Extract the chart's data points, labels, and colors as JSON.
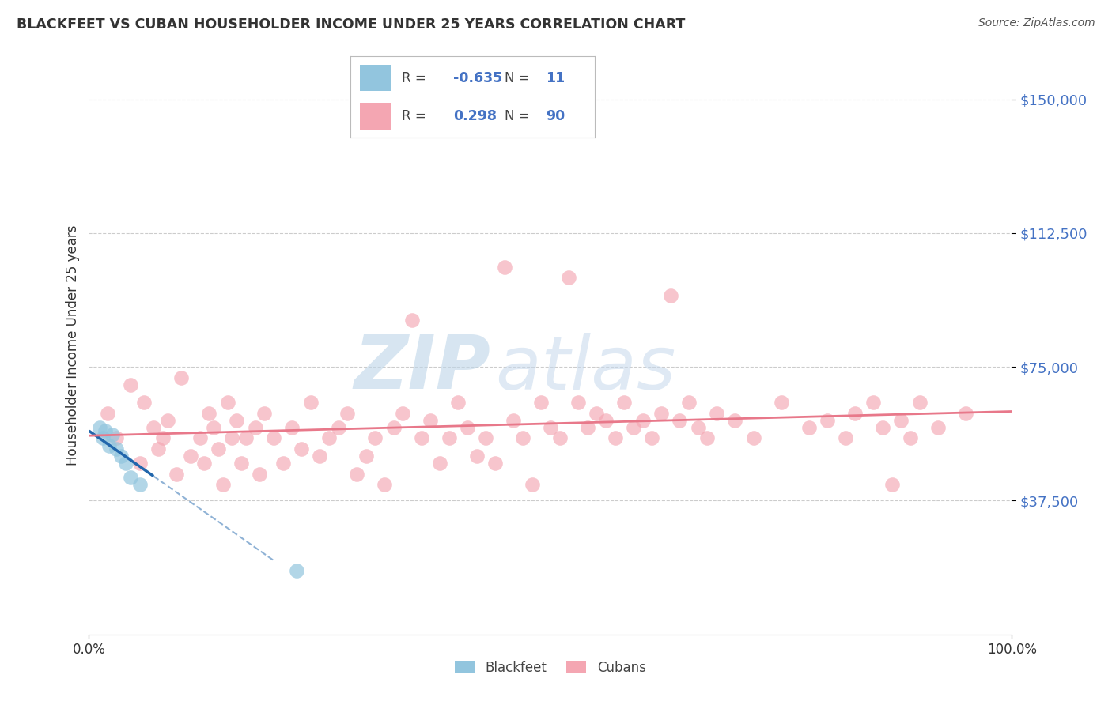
{
  "title": "BLACKFEET VS CUBAN HOUSEHOLDER INCOME UNDER 25 YEARS CORRELATION CHART",
  "source": "Source: ZipAtlas.com",
  "ylabel": "Householder Income Under 25 years",
  "ytick_labels": [
    "$37,500",
    "$75,000",
    "$112,500",
    "$150,000"
  ],
  "ytick_values": [
    37500,
    75000,
    112500,
    150000
  ],
  "ylim": [
    0,
    162000
  ],
  "xlim": [
    0,
    100
  ],
  "blackfeet_R": -0.635,
  "blackfeet_N": 11,
  "cubans_R": 0.298,
  "cubans_N": 90,
  "blackfeet_color": "#92C5DE",
  "cubans_color": "#F4A6B2",
  "trend_blackfeet_color": "#2166AC",
  "trend_cubans_color": "#E8788A",
  "blackfeet_x": [
    1.2,
    1.5,
    1.8,
    2.2,
    2.5,
    3.0,
    3.5,
    4.0,
    4.5,
    5.5,
    22.5
  ],
  "blackfeet_y": [
    58000,
    55000,
    57000,
    53000,
    56000,
    52000,
    50000,
    48000,
    44000,
    42000,
    18000
  ],
  "cubans_x": [
    2.0,
    3.0,
    4.5,
    5.5,
    6.0,
    7.0,
    7.5,
    8.0,
    8.5,
    9.5,
    10.0,
    11.0,
    12.0,
    12.5,
    13.0,
    13.5,
    14.0,
    14.5,
    15.0,
    15.5,
    16.0,
    16.5,
    17.0,
    18.0,
    18.5,
    19.0,
    20.0,
    21.0,
    22.0,
    23.0,
    24.0,
    25.0,
    26.0,
    27.0,
    28.0,
    29.0,
    30.0,
    31.0,
    32.0,
    33.0,
    34.0,
    35.0,
    36.0,
    37.0,
    38.0,
    39.0,
    40.0,
    41.0,
    42.0,
    43.0,
    44.0,
    45.0,
    46.0,
    47.0,
    48.0,
    49.0,
    50.0,
    51.0,
    52.0,
    53.0,
    54.0,
    55.0,
    56.0,
    57.0,
    58.0,
    59.0,
    60.0,
    61.0,
    62.0,
    63.0,
    64.0,
    65.0,
    66.0,
    67.0,
    68.0,
    70.0,
    72.0,
    75.0,
    78.0,
    80.0,
    82.0,
    83.0,
    85.0,
    86.0,
    87.0,
    88.0,
    89.0,
    90.0,
    92.0,
    95.0
  ],
  "cubans_y": [
    62000,
    55000,
    70000,
    48000,
    65000,
    58000,
    52000,
    55000,
    60000,
    45000,
    72000,
    50000,
    55000,
    48000,
    62000,
    58000,
    52000,
    42000,
    65000,
    55000,
    60000,
    48000,
    55000,
    58000,
    45000,
    62000,
    55000,
    48000,
    58000,
    52000,
    65000,
    50000,
    55000,
    58000,
    62000,
    45000,
    50000,
    55000,
    42000,
    58000,
    62000,
    88000,
    55000,
    60000,
    48000,
    55000,
    65000,
    58000,
    50000,
    55000,
    48000,
    103000,
    60000,
    55000,
    42000,
    65000,
    58000,
    55000,
    100000,
    65000,
    58000,
    62000,
    60000,
    55000,
    65000,
    58000,
    60000,
    55000,
    62000,
    95000,
    60000,
    65000,
    58000,
    55000,
    62000,
    60000,
    55000,
    65000,
    58000,
    60000,
    55000,
    62000,
    65000,
    58000,
    42000,
    60000,
    55000,
    65000,
    58000,
    62000
  ]
}
